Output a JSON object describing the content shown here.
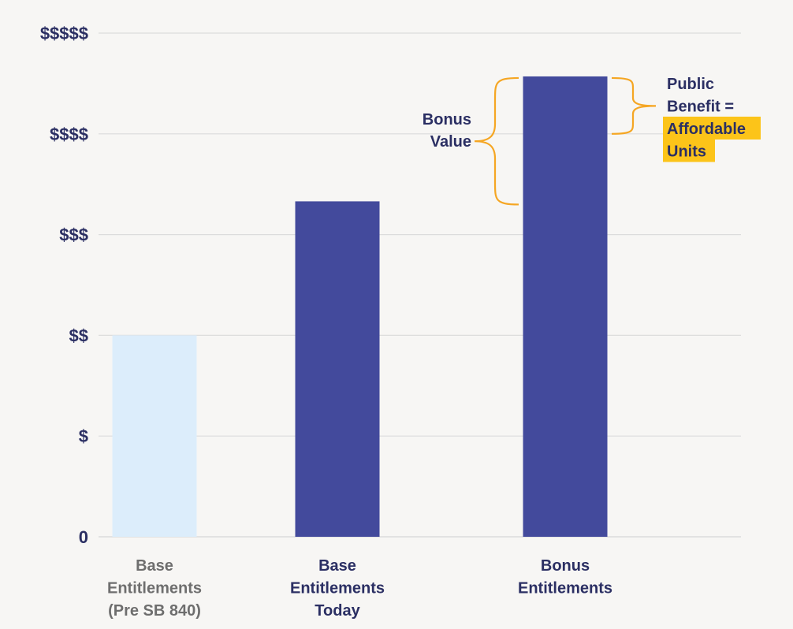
{
  "colors": {
    "background": "#f7f6f4",
    "gridline": "#dcdcdc",
    "axis_text": "#2b2f63",
    "bar_primary": "#434a9c",
    "bar_light": "#dcedfb",
    "muted_text": "#6e6e6e",
    "brace": "#f5a623",
    "highlight": "#fcc419"
  },
  "chart_data": {
    "type": "bar",
    "title": "",
    "xlabel": "",
    "ylabel": "",
    "ylim": [
      0,
      5
    ],
    "yticks": [
      0,
      1,
      2,
      3,
      4,
      5
    ],
    "ytick_labels": [
      "0",
      "$",
      "$$",
      "$$$",
      "$$$$",
      "$$$$$"
    ],
    "grid": true,
    "categories": [
      [
        "Base",
        "Entitlements",
        "(Pre SB 840)"
      ],
      [
        "Base",
        "Entitlements",
        "Today"
      ],
      [
        "Bonus",
        "Entitlements"
      ]
    ],
    "values": [
      2.0,
      3.33,
      4.57
    ],
    "bar_styles": [
      "light",
      "primary",
      "primary"
    ],
    "annotations": {
      "bonus_value": {
        "label": [
          "Bonus",
          "Value"
        ],
        "range": [
          3.33,
          4.57
        ]
      },
      "public_benefit": {
        "label": [
          "Public",
          "Benefit ="
        ],
        "highlight": [
          "Affordable",
          "Units"
        ],
        "range": [
          4.0,
          4.57
        ]
      }
    }
  }
}
